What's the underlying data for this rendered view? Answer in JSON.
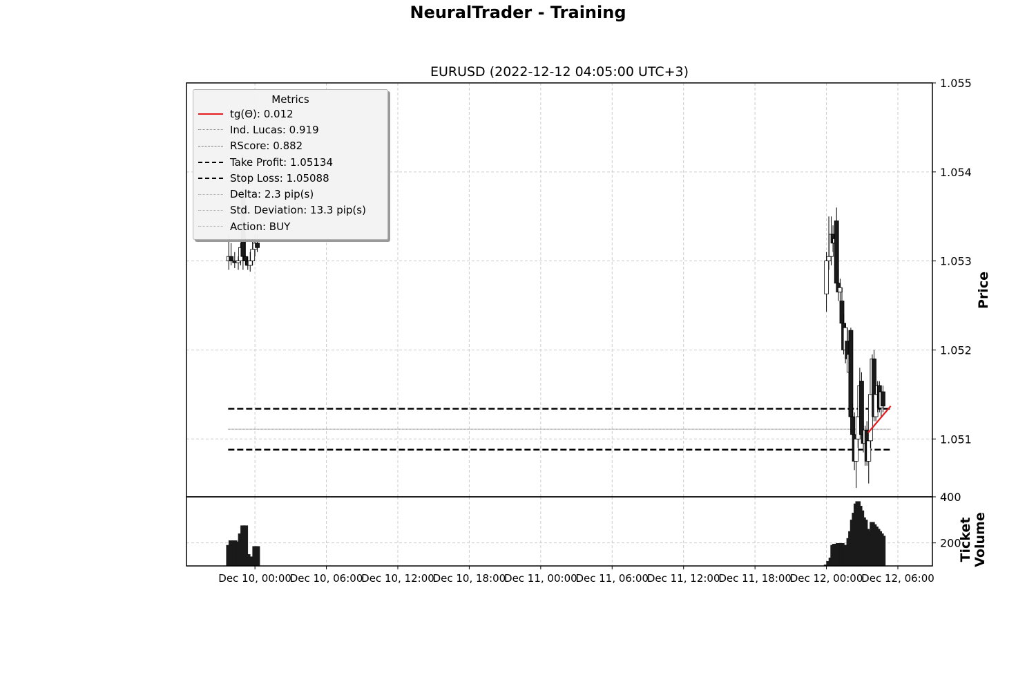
{
  "suptitle": "NeuralTrader - Training",
  "chart_data": {
    "type": "candlestick",
    "title": "EURUSD (2022-12-12 04:05:00 UTC+3)",
    "price_axis": {
      "label": "Price",
      "position": "right",
      "ylim": [
        1.05035,
        1.055
      ],
      "ticks": [
        "1.051",
        "1.052",
        "1.053",
        "1.054",
        "1.055"
      ]
    },
    "volume_axis": {
      "label": "Ticket\nVolume",
      "position": "right",
      "ylim": [
        100,
        400
      ],
      "ticks": [
        "200",
        "400"
      ]
    },
    "x_axis": {
      "tick_labels": [
        "Dec 10, 00:00",
        "Dec 10, 06:00",
        "Dec 10, 12:00",
        "Dec 10, 18:00",
        "Dec 11, 00:00",
        "Dec 11, 06:00",
        "Dec 11, 12:00",
        "Dec 11, 18:00",
        "Dec 12, 00:00",
        "Dec 12, 06:00"
      ],
      "tick_hours": [
        0,
        6,
        12,
        18,
        24,
        30,
        36,
        42,
        48,
        54
      ],
      "xlim_hours": [
        -5.75,
        56.9
      ]
    },
    "grid": true,
    "legend": {
      "title": "Metrics",
      "placement": "upper-left",
      "entries": [
        {
          "label": "tg(Θ): 0.012",
          "style": "solid",
          "color": "#e41a1c"
        },
        {
          "label": "Ind. Lucas: 0.919",
          "style": "dotted",
          "color": "#888888"
        },
        {
          "label": "RScore: 0.882",
          "style": "dashed",
          "color": "#777777"
        },
        {
          "label": "Take Profit: 1.05134",
          "style": "dashed-bold",
          "color": "#000000"
        },
        {
          "label": "Stop Loss: 1.05088",
          "style": "dashed-bold",
          "color": "#000000"
        },
        {
          "label": "Delta: 2.3 pip(s)",
          "style": "dotted",
          "color": "#aaaaaa"
        },
        {
          "label": "Std. Deviation: 13.3 pip(s)",
          "style": "dotted",
          "color": "#aaaaaa"
        },
        {
          "label": "Action: BUY",
          "style": "dotted",
          "color": "#aaaaaa"
        }
      ]
    },
    "levels": {
      "take_profit": 1.05134,
      "stop_loss": 1.05088,
      "mid_line": 1.05111,
      "x_start_hours": -2.25,
      "x_end_hours": 53.4
    },
    "trend_line": {
      "color": "#e41a1c",
      "points": [
        [
          51.5,
          1.05107
        ],
        [
          53.4,
          1.05137
        ]
      ]
    },
    "candles": [
      {
        "t": -2.2,
        "o": 1.053,
        "h": 1.0533,
        "l": 1.0529,
        "c": 1.05305,
        "v": 190
      },
      {
        "t": -2.0,
        "o": 1.05305,
        "h": 1.0532,
        "l": 1.05295,
        "c": 1.053,
        "v": 210
      },
      {
        "t": -1.7,
        "o": 1.053,
        "h": 1.0531,
        "l": 1.05292,
        "c": 1.05298,
        "v": 210
      },
      {
        "t": -1.4,
        "o": 1.05298,
        "h": 1.05305,
        "l": 1.0529,
        "c": 1.053,
        "v": 205
      },
      {
        "t": -1.2,
        "o": 1.053,
        "h": 1.0532,
        "l": 1.05295,
        "c": 1.05315,
        "v": 240
      },
      {
        "t": -1.0,
        "o": 1.0538,
        "h": 1.0542,
        "l": 1.0529,
        "c": 1.05305,
        "v": 275
      },
      {
        "t": -0.8,
        "o": 1.05305,
        "h": 1.0533,
        "l": 1.05295,
        "c": 1.053,
        "v": 275
      },
      {
        "t": -0.6,
        "o": 1.053,
        "h": 1.05305,
        "l": 1.0529,
        "c": 1.05295,
        "v": 150
      },
      {
        "t": -0.4,
        "o": 1.05295,
        "h": 1.0531,
        "l": 1.05288,
        "c": 1.053,
        "v": 130
      },
      {
        "t": -0.2,
        "o": 1.053,
        "h": 1.05325,
        "l": 1.05295,
        "c": 1.05313,
        "v": 140
      },
      {
        "t": 0.0,
        "o": 1.05313,
        "h": 1.0533,
        "l": 1.05305,
        "c": 1.0532,
        "v": 185
      },
      {
        "t": 0.2,
        "o": 1.0532,
        "h": 1.0533,
        "l": 1.0531,
        "c": 1.05315,
        "v": 185
      },
      {
        "t": 48.0,
        "o": 1.05263,
        "h": 1.0531,
        "l": 1.05243,
        "c": 1.053,
        "v": 105
      },
      {
        "t": 48.2,
        "o": 1.053,
        "h": 1.0535,
        "l": 1.0529,
        "c": 1.05305,
        "v": 120
      },
      {
        "t": 48.4,
        "o": 1.05305,
        "h": 1.0535,
        "l": 1.05295,
        "c": 1.0533,
        "v": 135
      },
      {
        "t": 48.55,
        "o": 1.0533,
        "h": 1.0534,
        "l": 1.0531,
        "c": 1.0532,
        "v": 190
      },
      {
        "t": 48.7,
        "o": 1.0532,
        "h": 1.0533,
        "l": 1.053,
        "c": 1.05325,
        "v": 195
      },
      {
        "t": 48.85,
        "o": 1.05345,
        "h": 1.0536,
        "l": 1.0527,
        "c": 1.05275,
        "v": 195
      },
      {
        "t": 49.0,
        "o": 1.05275,
        "h": 1.0529,
        "l": 1.05255,
        "c": 1.05265,
        "v": 198
      },
      {
        "t": 49.15,
        "o": 1.05265,
        "h": 1.0528,
        "l": 1.0525,
        "c": 1.0527,
        "v": 198
      },
      {
        "t": 49.3,
        "o": 1.05255,
        "h": 1.0527,
        "l": 1.05225,
        "c": 1.0523,
        "v": 198
      },
      {
        "t": 49.45,
        "o": 1.0523,
        "h": 1.0524,
        "l": 1.05195,
        "c": 1.052,
        "v": 190
      },
      {
        "t": 49.6,
        "o": 1.052,
        "h": 1.0523,
        "l": 1.05185,
        "c": 1.05225,
        "v": 185
      },
      {
        "t": 49.75,
        "o": 1.0521,
        "h": 1.05225,
        "l": 1.0518,
        "c": 1.0519,
        "v": 190
      },
      {
        "t": 49.9,
        "o": 1.05175,
        "h": 1.052,
        "l": 1.0516,
        "c": 1.05195,
        "v": 220
      },
      {
        "t": 50.05,
        "o": 1.05222,
        "h": 1.05225,
        "l": 1.0512,
        "c": 1.05125,
        "v": 250
      },
      {
        "t": 50.2,
        "o": 1.05125,
        "h": 1.0514,
        "l": 1.051,
        "c": 1.05105,
        "v": 300
      },
      {
        "t": 50.35,
        "o": 1.05105,
        "h": 1.0513,
        "l": 1.05065,
        "c": 1.05075,
        "v": 330
      },
      {
        "t": 50.5,
        "o": 1.05075,
        "h": 1.0511,
        "l": 1.05045,
        "c": 1.051,
        "v": 370
      },
      {
        "t": 50.65,
        "o": 1.051,
        "h": 1.0513,
        "l": 1.0509,
        "c": 1.05125,
        "v": 380
      },
      {
        "t": 50.8,
        "o": 1.05125,
        "h": 1.0518,
        "l": 1.05115,
        "c": 1.0516,
        "v": 360
      },
      {
        "t": 50.95,
        "o": 1.05165,
        "h": 1.05175,
        "l": 1.051,
        "c": 1.05105,
        "v": 340
      },
      {
        "t": 51.1,
        "o": 1.05105,
        "h": 1.0512,
        "l": 1.05085,
        "c": 1.05095,
        "v": 310
      },
      {
        "t": 51.25,
        "o": 1.05095,
        "h": 1.05115,
        "l": 1.0507,
        "c": 1.0511,
        "v": 300
      },
      {
        "t": 51.4,
        "o": 1.0511,
        "h": 1.0512,
        "l": 1.0507,
        "c": 1.05075,
        "v": 260
      },
      {
        "t": 51.55,
        "o": 1.05075,
        "h": 1.051,
        "l": 1.0505,
        "c": 1.05098,
        "v": 240
      },
      {
        "t": 51.7,
        "o": 1.05098,
        "h": 1.0516,
        "l": 1.0509,
        "c": 1.0515,
        "v": 250
      },
      {
        "t": 51.85,
        "o": 1.0515,
        "h": 1.05195,
        "l": 1.0514,
        "c": 1.0519,
        "v": 290
      },
      {
        "t": 52.0,
        "o": 1.0519,
        "h": 1.052,
        "l": 1.0512,
        "c": 1.05125,
        "v": 280
      },
      {
        "t": 52.15,
        "o": 1.05125,
        "h": 1.0516,
        "l": 1.0512,
        "c": 1.0515,
        "v": 270
      },
      {
        "t": 52.3,
        "o": 1.0515,
        "h": 1.05165,
        "l": 1.0513,
        "c": 1.0516,
        "v": 260
      },
      {
        "t": 52.45,
        "o": 1.0516,
        "h": 1.05165,
        "l": 1.0513,
        "c": 1.05135,
        "v": 250
      },
      {
        "t": 52.6,
        "o": 1.05135,
        "h": 1.05155,
        "l": 1.05125,
        "c": 1.05153,
        "v": 240
      },
      {
        "t": 52.75,
        "o": 1.05153,
        "h": 1.0516,
        "l": 1.0513,
        "c": 1.05137,
        "v": 230
      }
    ]
  }
}
